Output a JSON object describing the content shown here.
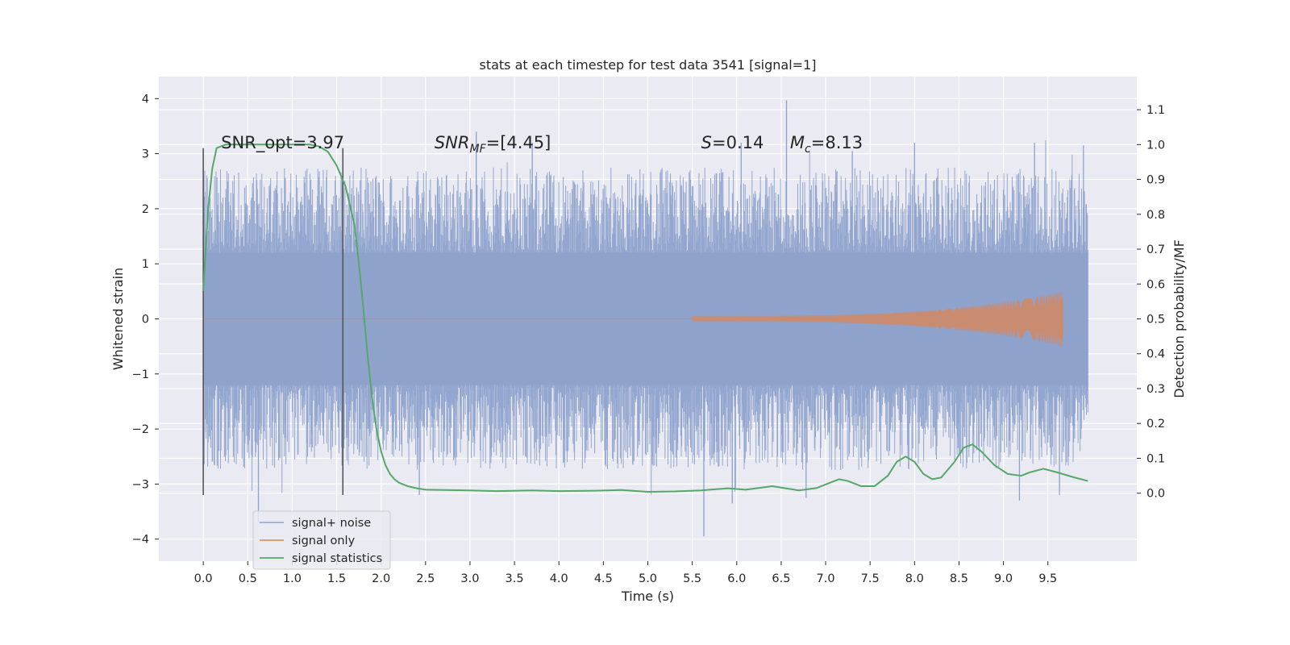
{
  "chart_data": {
    "type": "line",
    "title": "stats at each timestep for test data 3541 [signal=1]",
    "xlabel": "Time (s)",
    "ylabel_left": "Whitened strain",
    "ylabel_right": "Detection probability/MF",
    "xlim": [
      -0.5,
      10.5
    ],
    "ylim_left": [
      -4.4,
      4.4
    ],
    "ylim_right": [
      -0.195,
      1.195
    ],
    "x_ticks": [
      "0.0",
      "0.5",
      "1.0",
      "1.5",
      "2.0",
      "2.5",
      "3.0",
      "3.5",
      "4.0",
      "4.5",
      "5.0",
      "5.5",
      "6.0",
      "6.5",
      "7.0",
      "7.5",
      "8.0",
      "8.5",
      "9.0",
      "9.5"
    ],
    "y_left_ticks": [
      "4",
      "3",
      "2",
      "1",
      "0",
      "−1",
      "−2",
      "−3",
      "−4"
    ],
    "y_right_ticks": [
      "1.1",
      "1.0",
      "0.9",
      "0.8",
      "0.7",
      "0.6",
      "0.5",
      "0.4",
      "0.3",
      "0.2",
      "0.1",
      "0.0"
    ],
    "grid": true,
    "legend_position": "lower-left",
    "annotations": [
      {
        "text": "SNR_opt=3.97",
        "x": 0.2,
        "y": 3.1
      },
      {
        "text": "SNR_MF=[4.45]",
        "x": 2.6,
        "y": 3.1
      },
      {
        "text": "S=0.14",
        "x": 5.6,
        "y": 3.1
      },
      {
        "text": "M_c=8.13",
        "x": 6.6,
        "y": 3.1
      }
    ],
    "vertical_markers": [
      {
        "x": 0.0,
        "y_range": [
          -3.2,
          3.1
        ]
      },
      {
        "x": 1.57,
        "y_range": [
          -3.2,
          3.1
        ]
      }
    ],
    "series": [
      {
        "name": "signal+ noise",
        "color": "#8ea2cc",
        "axis": "left",
        "x_range": [
          0.0,
          9.95
        ],
        "envelope": {
          "upper_typical": 2.2,
          "upper_peak": 4.0,
          "lower_typical": -2.2,
          "lower_peak": -3.95
        },
        "spikes": [
          {
            "x": 0.62,
            "y": -3.7
          },
          {
            "x": 2.43,
            "y": -3.2
          },
          {
            "x": 3.07,
            "y": 3.4
          },
          {
            "x": 3.7,
            "y": 3.2
          },
          {
            "x": 5.63,
            "y": -3.95
          },
          {
            "x": 5.95,
            "y": -3.35
          },
          {
            "x": 6.05,
            "y": 3.2
          },
          {
            "x": 6.56,
            "y": 3.97
          },
          {
            "x": 6.78,
            "y": -3.25
          },
          {
            "x": 7.3,
            "y": 3.05
          },
          {
            "x": 8.0,
            "y": 3.2
          },
          {
            "x": 9.18,
            "y": -3.3
          },
          {
            "x": 9.35,
            "y": 3.2
          },
          {
            "x": 9.63,
            "y": -3.2
          },
          {
            "x": 9.9,
            "y": 3.15
          }
        ]
      },
      {
        "name": "signal only",
        "color": "#dd8452",
        "axis": "left",
        "x_range": [
          5.5,
          9.67
        ],
        "amplitude_start": 0.05,
        "amplitude_end": 0.5
      },
      {
        "name": "signal statistics",
        "color": "#55a868",
        "axis": "right",
        "x": [
          0.0,
          0.05,
          0.1,
          0.15,
          0.25,
          0.5,
          1.0,
          1.2,
          1.3,
          1.4,
          1.5,
          1.6,
          1.7,
          1.75,
          1.8,
          1.85,
          1.9,
          1.95,
          2.0,
          2.05,
          2.1,
          2.15,
          2.2,
          2.3,
          2.4,
          2.5,
          3.0,
          3.3,
          3.7,
          4.0,
          4.4,
          4.7,
          5.0,
          5.3,
          5.6,
          5.9,
          6.1,
          6.4,
          6.7,
          6.9,
          7.05,
          7.15,
          7.25,
          7.4,
          7.55,
          7.7,
          7.8,
          7.9,
          8.0,
          8.1,
          8.2,
          8.3,
          8.45,
          8.55,
          8.65,
          8.75,
          8.9,
          9.05,
          9.2,
          9.3,
          9.45,
          9.6,
          9.8,
          9.95
        ],
        "y": [
          0.58,
          0.8,
          0.93,
          0.99,
          1.0,
          1.0,
          1.0,
          1.0,
          0.995,
          0.98,
          0.94,
          0.88,
          0.77,
          0.66,
          0.53,
          0.39,
          0.27,
          0.18,
          0.12,
          0.08,
          0.055,
          0.04,
          0.03,
          0.02,
          0.014,
          0.01,
          0.008,
          0.006,
          0.008,
          0.006,
          0.007,
          0.009,
          0.004,
          0.005,
          0.008,
          0.014,
          0.01,
          0.02,
          0.008,
          0.015,
          0.03,
          0.04,
          0.035,
          0.02,
          0.02,
          0.05,
          0.09,
          0.105,
          0.09,
          0.055,
          0.04,
          0.045,
          0.09,
          0.13,
          0.14,
          0.12,
          0.08,
          0.055,
          0.05,
          0.06,
          0.07,
          0.06,
          0.045,
          0.035
        ]
      }
    ]
  },
  "legend": {
    "items": [
      {
        "label": "signal+ noise",
        "color": "#8ea2cc"
      },
      {
        "label": "signal only",
        "color": "#dd8452"
      },
      {
        "label": "signal statistics",
        "color": "#55a868"
      }
    ]
  }
}
